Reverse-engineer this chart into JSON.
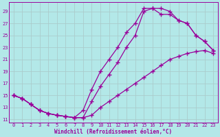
{
  "xlabel": "Windchill (Refroidissement éolien,°C)",
  "background_color": "#b3e8e8",
  "line_color": "#990099",
  "grid_color": "#aacccc",
  "xlim": [
    -0.5,
    23.5
  ],
  "ylim": [
    10.5,
    30.5
  ],
  "xticks": [
    0,
    1,
    2,
    3,
    4,
    5,
    6,
    7,
    8,
    9,
    10,
    11,
    12,
    13,
    14,
    15,
    16,
    17,
    18,
    19,
    20,
    21,
    22,
    23
  ],
  "yticks": [
    11,
    13,
    15,
    17,
    19,
    21,
    23,
    25,
    27,
    29
  ],
  "line1_x": [
    0,
    1,
    2,
    3,
    4,
    5,
    6,
    7,
    8,
    9,
    10,
    11,
    12,
    13,
    14,
    15,
    16,
    17,
    18,
    19,
    20,
    21,
    22,
    23
  ],
  "line1_y": [
    15,
    14.5,
    13.5,
    12.5,
    12,
    11.7,
    11.5,
    11.3,
    11.3,
    11.7,
    13,
    14,
    15,
    16,
    17,
    18,
    19,
    20,
    21,
    21.5,
    22,
    22.3,
    22.5,
    22
  ],
  "line2_x": [
    0,
    1,
    2,
    3,
    4,
    5,
    6,
    7,
    8,
    9,
    10,
    11,
    12,
    13,
    14,
    15,
    16,
    17,
    18,
    19,
    20,
    21,
    22,
    23
  ],
  "line2_y": [
    15,
    14.5,
    13.5,
    12.5,
    12,
    11.7,
    11.5,
    11.3,
    12.5,
    16,
    19,
    21,
    23,
    25.5,
    27,
    29.5,
    29.5,
    29.5,
    29,
    27.5,
    27,
    25,
    24,
    22.5
  ],
  "line3_x": [
    0,
    1,
    2,
    3,
    4,
    5,
    6,
    7,
    8,
    9,
    10,
    11,
    12,
    13,
    14,
    15,
    16,
    17,
    18,
    19,
    20,
    21,
    22,
    23
  ],
  "line3_y": [
    15,
    14.5,
    13.5,
    12.5,
    12,
    11.7,
    11.5,
    11.3,
    11.3,
    14,
    16.5,
    18.5,
    20.5,
    23,
    25,
    29,
    29.5,
    28.5,
    28.5,
    27.5,
    27,
    25,
    24,
    22.5
  ],
  "marker": "+",
  "markersize": 4,
  "linewidth": 0.9,
  "xlabel_fontsize": 5.5,
  "tick_fontsize": 5
}
